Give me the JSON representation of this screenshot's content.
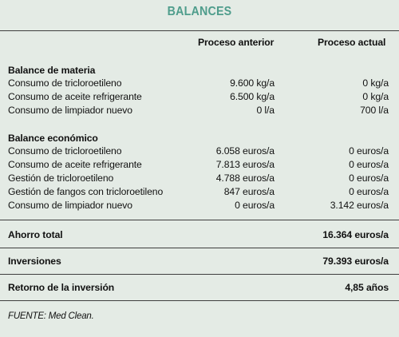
{
  "title": "BALANCES",
  "columns": {
    "previous": "Proceso anterior",
    "current": "Proceso actual"
  },
  "balance_materia": {
    "heading": "Balance de materia",
    "rows": [
      {
        "label": "Consumo de tricloroetileno",
        "previous": "9.600 kg/a",
        "current": "0 kg/a"
      },
      {
        "label": "Consumo de aceite refrigerante",
        "previous": "6.500 kg/a",
        "current": "0 kg/a"
      },
      {
        "label": "Consumo de limpiador nuevo",
        "previous": "0 l/a",
        "current": "700 l/a"
      }
    ]
  },
  "balance_economico": {
    "heading": "Balance económico",
    "rows": [
      {
        "label": "Consumo de tricloroetileno",
        "previous": "6.058 euros/a",
        "current": "0 euros/a"
      },
      {
        "label": "Consumo de aceite refrigerante",
        "previous": "7.813 euros/a",
        "current": "0 euros/a"
      },
      {
        "label": "Gestión de tricloroetileno",
        "previous": "4.788 euros/a",
        "current": "0 euros/a"
      },
      {
        "label": "Gestión de fangos con tricloroetileno",
        "previous": "847 euros/a",
        "current": "0 euros/a"
      },
      {
        "label": "Consumo de limpiador nuevo",
        "previous": "0 euros/a",
        "current": "3.142 euros/a"
      }
    ]
  },
  "totals": {
    "ahorro": {
      "label": "Ahorro total",
      "value": "16.364 euros/a"
    },
    "inversiones": {
      "label": "Inversiones",
      "value": "79.393 euros/a"
    },
    "retorno": {
      "label": "Retorno de la inversión",
      "value": "4,85 años"
    }
  },
  "source": "FUENTE: Med Clean."
}
